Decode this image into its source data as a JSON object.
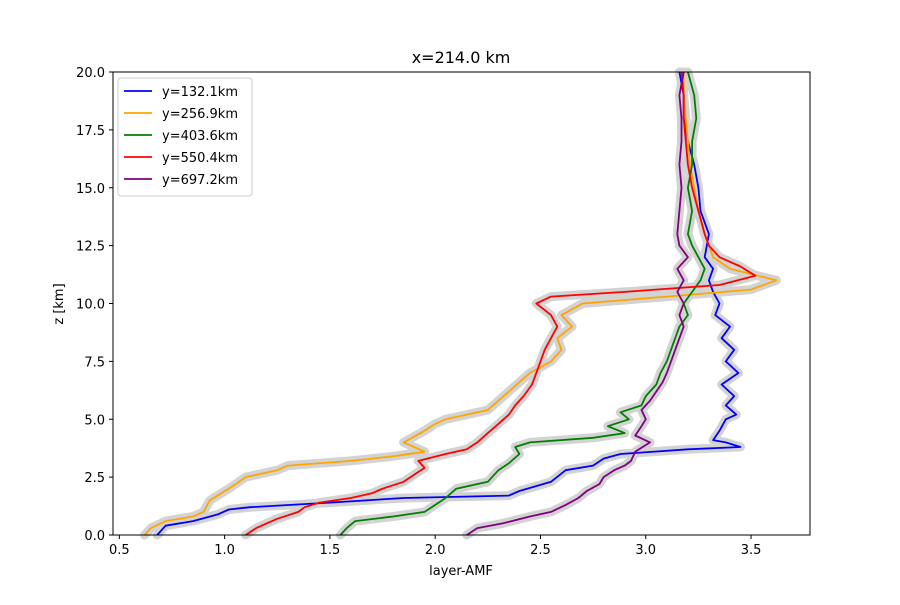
{
  "chart_data": {
    "type": "line",
    "title": "x=214.0 km",
    "xlabel": "layer-AMF",
    "ylabel": "z [km]",
    "xlim": [
      0.47,
      3.78
    ],
    "ylim": [
      0,
      20
    ],
    "xticks": [
      0.5,
      1.0,
      1.5,
      2.0,
      2.5,
      3.0,
      3.5
    ],
    "xtick_labels": [
      "0.5",
      "1.0",
      "1.5",
      "2.0",
      "2.5",
      "3.0",
      "3.5"
    ],
    "yticks": [
      0,
      2.5,
      5,
      7.5,
      10,
      12.5,
      15,
      17.5,
      20
    ],
    "ytick_labels": [
      "0.0",
      "2.5",
      "5.0",
      "7.5",
      "10.0",
      "12.5",
      "15.0",
      "17.5",
      "20.0"
    ],
    "grid": false,
    "legend_position": "upper-left",
    "uncertainty_band_color": "#d3d3d3",
    "series": [
      {
        "name": "y=132.1km",
        "color": "#0000ff",
        "points": [
          [
            0.68,
            0
          ],
          [
            0.72,
            0.4
          ],
          [
            0.85,
            0.6
          ],
          [
            0.97,
            0.9
          ],
          [
            1.02,
            1.1
          ],
          [
            1.12,
            1.2
          ],
          [
            1.5,
            1.4
          ],
          [
            1.85,
            1.6
          ],
          [
            2.35,
            1.7
          ],
          [
            2.4,
            1.9
          ],
          [
            2.55,
            2.3
          ],
          [
            2.62,
            2.8
          ],
          [
            2.75,
            3.0
          ],
          [
            2.8,
            3.3
          ],
          [
            2.88,
            3.5
          ],
          [
            3.2,
            3.7
          ],
          [
            3.45,
            3.8
          ],
          [
            3.38,
            4.0
          ],
          [
            3.32,
            4.1
          ],
          [
            3.35,
            4.5
          ],
          [
            3.38,
            5.0
          ],
          [
            3.43,
            5.2
          ],
          [
            3.38,
            5.6
          ],
          [
            3.42,
            6.0
          ],
          [
            3.36,
            6.5
          ],
          [
            3.44,
            7.0
          ],
          [
            3.38,
            7.5
          ],
          [
            3.42,
            8.0
          ],
          [
            3.36,
            8.5
          ],
          [
            3.4,
            9.0
          ],
          [
            3.33,
            9.5
          ],
          [
            3.35,
            10.0
          ],
          [
            3.32,
            10.5
          ],
          [
            3.3,
            11.0
          ],
          [
            3.32,
            11.5
          ],
          [
            3.28,
            12.0
          ],
          [
            3.3,
            13.0
          ],
          [
            3.26,
            14.0
          ],
          [
            3.25,
            15.0
          ],
          [
            3.23,
            16.0
          ],
          [
            3.2,
            17.0
          ],
          [
            3.18,
            18.0
          ],
          [
            3.18,
            19.0
          ],
          [
            3.16,
            20.0
          ]
        ]
      },
      {
        "name": "y=256.9km",
        "color": "#ffa500",
        "points": [
          [
            0.62,
            0
          ],
          [
            0.65,
            0.3
          ],
          [
            0.72,
            0.6
          ],
          [
            0.85,
            0.8
          ],
          [
            0.9,
            1.0
          ],
          [
            0.93,
            1.5
          ],
          [
            1.02,
            2.0
          ],
          [
            1.1,
            2.5
          ],
          [
            1.25,
            2.8
          ],
          [
            1.3,
            3.0
          ],
          [
            1.6,
            3.2
          ],
          [
            1.8,
            3.4
          ],
          [
            1.95,
            3.6
          ],
          [
            1.85,
            4.0
          ],
          [
            1.95,
            4.5
          ],
          [
            2.0,
            4.8
          ],
          [
            2.05,
            5.0
          ],
          [
            2.25,
            5.4
          ],
          [
            2.3,
            5.8
          ],
          [
            2.35,
            6.2
          ],
          [
            2.4,
            6.6
          ],
          [
            2.45,
            7.0
          ],
          [
            2.55,
            7.5
          ],
          [
            2.6,
            8.0
          ],
          [
            2.58,
            8.5
          ],
          [
            2.65,
            9.0
          ],
          [
            2.6,
            9.5
          ],
          [
            2.7,
            10.0
          ],
          [
            3.1,
            10.3
          ],
          [
            3.5,
            10.6
          ],
          [
            3.62,
            11.0
          ],
          [
            3.4,
            11.5
          ],
          [
            3.32,
            12.0
          ],
          [
            3.3,
            12.5
          ],
          [
            3.28,
            13.0
          ],
          [
            3.25,
            14.0
          ],
          [
            3.23,
            15.0
          ],
          [
            3.21,
            16.0
          ],
          [
            3.2,
            17.0
          ],
          [
            3.19,
            18.0
          ],
          [
            3.18,
            19.0
          ],
          [
            3.18,
            20.0
          ]
        ]
      },
      {
        "name": "y=403.6km",
        "color": "#008000",
        "points": [
          [
            1.55,
            0
          ],
          [
            1.58,
            0.3
          ],
          [
            1.62,
            0.6
          ],
          [
            1.8,
            0.8
          ],
          [
            1.95,
            1.0
          ],
          [
            2.0,
            1.3
          ],
          [
            2.05,
            1.6
          ],
          [
            2.1,
            2.0
          ],
          [
            2.25,
            2.3
          ],
          [
            2.3,
            2.8
          ],
          [
            2.35,
            3.1
          ],
          [
            2.4,
            3.5
          ],
          [
            2.38,
            3.8
          ],
          [
            2.45,
            4.0
          ],
          [
            2.75,
            4.2
          ],
          [
            2.9,
            4.4
          ],
          [
            2.82,
            4.7
          ],
          [
            2.92,
            5.0
          ],
          [
            2.88,
            5.3
          ],
          [
            2.98,
            5.6
          ],
          [
            3.0,
            6.0
          ],
          [
            3.05,
            6.5
          ],
          [
            3.07,
            7.0
          ],
          [
            3.1,
            7.5
          ],
          [
            3.12,
            8.0
          ],
          [
            3.14,
            8.5
          ],
          [
            3.16,
            9.0
          ],
          [
            3.2,
            9.5
          ],
          [
            3.18,
            10.0
          ],
          [
            3.22,
            10.5
          ],
          [
            3.26,
            11.0
          ],
          [
            3.28,
            11.5
          ],
          [
            3.25,
            12.0
          ],
          [
            3.22,
            12.5
          ],
          [
            3.2,
            13.0
          ],
          [
            3.22,
            14.0
          ],
          [
            3.2,
            15.0
          ],
          [
            3.22,
            16.0
          ],
          [
            3.22,
            17.0
          ],
          [
            3.24,
            18.0
          ],
          [
            3.23,
            19.0
          ],
          [
            3.2,
            20.0
          ]
        ]
      },
      {
        "name": "y=550.4km",
        "color": "#ff0000",
        "points": [
          [
            1.1,
            0
          ],
          [
            1.15,
            0.3
          ],
          [
            1.25,
            0.7
          ],
          [
            1.35,
            1.0
          ],
          [
            1.38,
            1.2
          ],
          [
            1.45,
            1.4
          ],
          [
            1.6,
            1.6
          ],
          [
            1.7,
            1.8
          ],
          [
            1.75,
            2.0
          ],
          [
            1.85,
            2.3
          ],
          [
            1.9,
            2.6
          ],
          [
            1.95,
            2.9
          ],
          [
            1.92,
            3.2
          ],
          [
            2.05,
            3.5
          ],
          [
            2.15,
            3.7
          ],
          [
            2.2,
            4.0
          ],
          [
            2.25,
            4.4
          ],
          [
            2.3,
            4.8
          ],
          [
            2.35,
            5.2
          ],
          [
            2.38,
            5.6
          ],
          [
            2.42,
            6.0
          ],
          [
            2.46,
            6.5
          ],
          [
            2.48,
            7.0
          ],
          [
            2.5,
            7.5
          ],
          [
            2.52,
            8.0
          ],
          [
            2.55,
            8.5
          ],
          [
            2.58,
            9.0
          ],
          [
            2.55,
            9.5
          ],
          [
            2.48,
            10.0
          ],
          [
            2.55,
            10.3
          ],
          [
            2.9,
            10.5
          ],
          [
            3.35,
            10.8
          ],
          [
            3.52,
            11.2
          ],
          [
            3.45,
            11.6
          ],
          [
            3.35,
            12.0
          ],
          [
            3.3,
            12.5
          ],
          [
            3.28,
            13.0
          ],
          [
            3.25,
            14.0
          ],
          [
            3.22,
            15.0
          ],
          [
            3.2,
            16.0
          ],
          [
            3.19,
            17.0
          ],
          [
            3.18,
            18.0
          ],
          [
            3.18,
            19.0
          ],
          [
            3.17,
            20.0
          ]
        ]
      },
      {
        "name": "y=697.2km",
        "color": "#800080",
        "points": [
          [
            2.15,
            0
          ],
          [
            2.2,
            0.3
          ],
          [
            2.32,
            0.5
          ],
          [
            2.45,
            0.8
          ],
          [
            2.55,
            1.0
          ],
          [
            2.62,
            1.3
          ],
          [
            2.68,
            1.6
          ],
          [
            2.72,
            1.9
          ],
          [
            2.78,
            2.2
          ],
          [
            2.8,
            2.5
          ],
          [
            2.85,
            2.8
          ],
          [
            2.9,
            3.0
          ],
          [
            2.93,
            3.2
          ],
          [
            2.95,
            3.6
          ],
          [
            3.02,
            4.0
          ],
          [
            2.95,
            4.3
          ],
          [
            2.98,
            4.7
          ],
          [
            3.0,
            5.0
          ],
          [
            2.98,
            5.4
          ],
          [
            3.02,
            5.8
          ],
          [
            3.05,
            6.2
          ],
          [
            3.08,
            6.6
          ],
          [
            3.1,
            7.0
          ],
          [
            3.12,
            7.5
          ],
          [
            3.14,
            8.0
          ],
          [
            3.16,
            8.5
          ],
          [
            3.18,
            9.0
          ],
          [
            3.16,
            9.5
          ],
          [
            3.18,
            10.0
          ],
          [
            3.15,
            10.5
          ],
          [
            3.18,
            11.0
          ],
          [
            3.15,
            11.5
          ],
          [
            3.2,
            12.0
          ],
          [
            3.16,
            12.5
          ],
          [
            3.15,
            13.0
          ],
          [
            3.16,
            14.0
          ],
          [
            3.17,
            15.0
          ],
          [
            3.16,
            16.0
          ],
          [
            3.17,
            17.0
          ],
          [
            3.17,
            18.0
          ],
          [
            3.16,
            19.0
          ],
          [
            3.18,
            20.0
          ]
        ]
      }
    ]
  }
}
